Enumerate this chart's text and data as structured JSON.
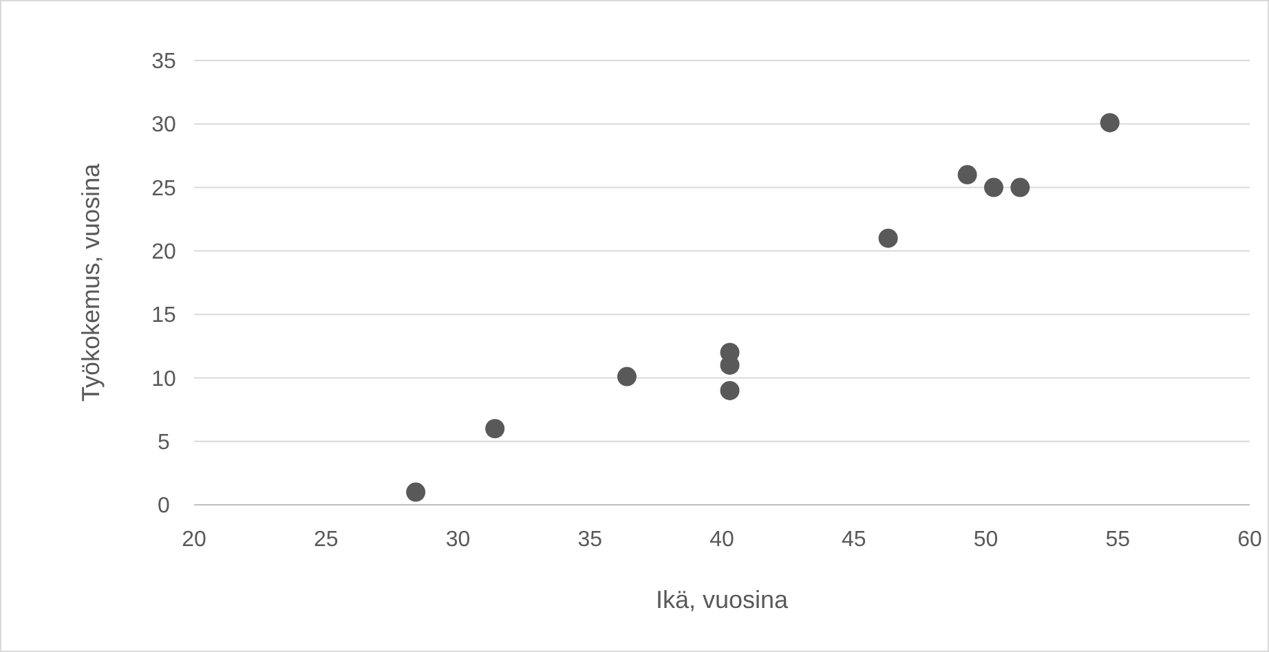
{
  "chart_data": {
    "type": "scatter",
    "xlabel": "Ikä, vuosina",
    "ylabel": "Työkokemus, vuosina",
    "x": [
      28.4,
      31.4,
      36.4,
      40.3,
      40.3,
      40.3,
      46.3,
      49.3,
      50.3,
      51.3,
      54.7
    ],
    "series": [
      {
        "color": "#595959",
        "values": [
          1,
          6,
          10.1,
          12,
          11,
          9,
          21,
          26,
          25,
          25,
          30.1
        ]
      }
    ],
    "xlim": [
      20,
      60
    ],
    "xticks": [
      20,
      25,
      30,
      35,
      40,
      45,
      50,
      55,
      60
    ],
    "ylim": [
      0,
      35
    ],
    "yticks": [
      0,
      5,
      10,
      15,
      20,
      25,
      30,
      35
    ],
    "grid": "y",
    "marker": "circle"
  }
}
